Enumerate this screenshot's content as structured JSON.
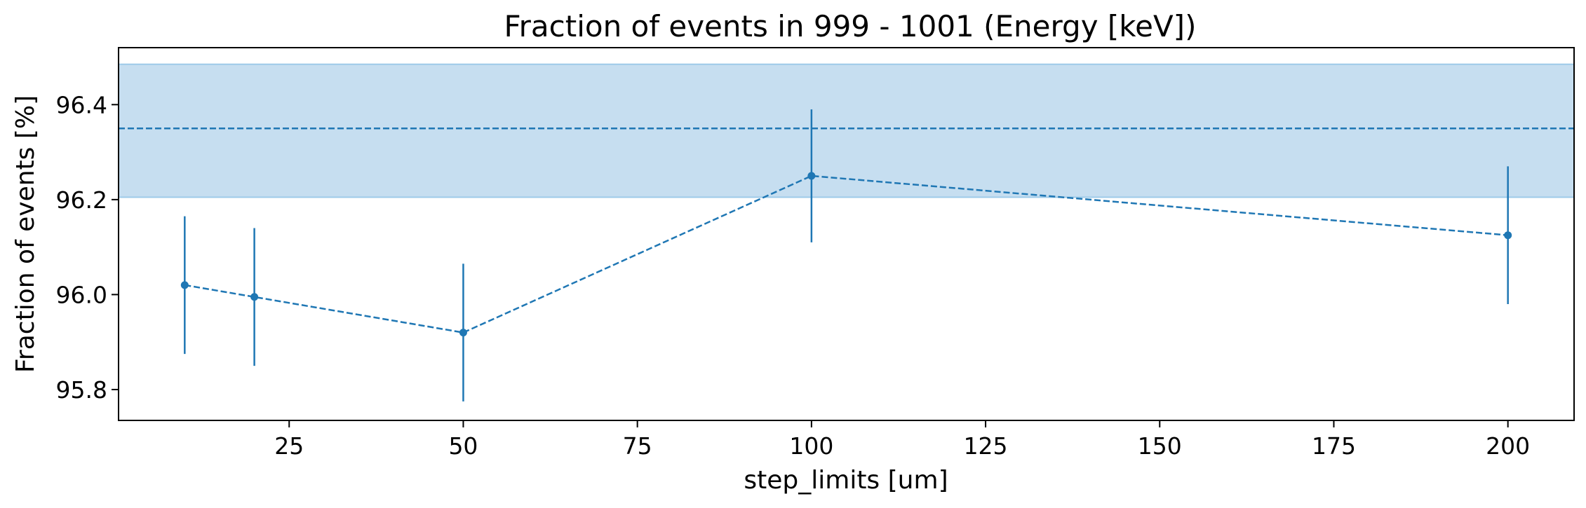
{
  "chart_data": {
    "type": "line",
    "title": "Fraction of events in 999 - 1001 (Energy [keV])",
    "xlabel": "step_limits [um]",
    "ylabel": "Fraction of events [%]",
    "xlim": [
      0.5,
      209.5
    ],
    "ylim": [
      95.735,
      96.52
    ],
    "xticks": [
      25,
      50,
      75,
      100,
      125,
      150,
      175,
      200
    ],
    "yticks": [
      95.8,
      96.0,
      96.2,
      96.4
    ],
    "x": [
      10,
      20,
      50,
      100,
      200
    ],
    "y": [
      96.02,
      95.995,
      95.92,
      96.25,
      96.125
    ],
    "yerr": [
      0.145,
      0.145,
      0.145,
      0.14,
      0.145
    ],
    "reference": {
      "value": 96.35,
      "band": [
        96.205,
        96.485
      ]
    },
    "grid": false,
    "colors": {
      "series": "#1f77b4",
      "band_fill": "#c6def0",
      "band_edge": "#9ecae9"
    }
  }
}
